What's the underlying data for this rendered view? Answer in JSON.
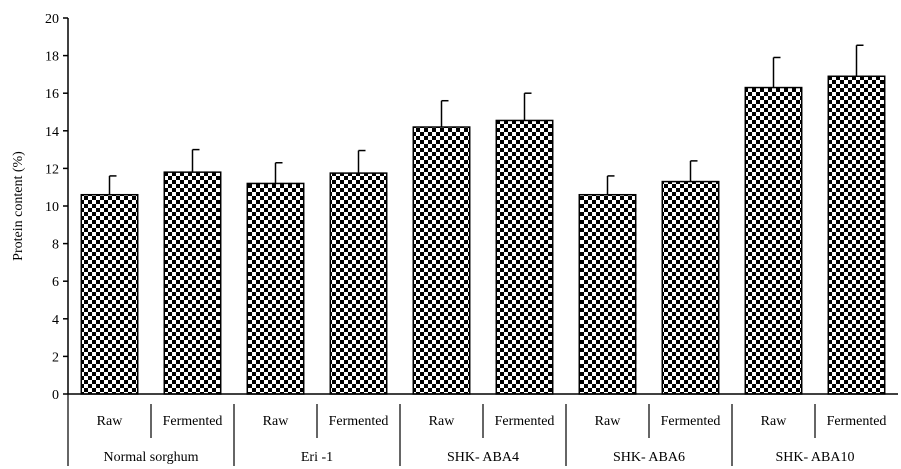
{
  "chart_data": {
    "type": "bar",
    "title": "",
    "xlabel": "",
    "ylabel": "Protein content (%)",
    "ylim": [
      0,
      20
    ],
    "yticks": [
      0,
      2,
      4,
      6,
      8,
      10,
      12,
      14,
      16,
      18,
      20
    ],
    "grid": false,
    "bar_pattern": "checkerboard",
    "bar_color": "#000000",
    "groups": [
      {
        "label": "Normal sorghum",
        "bars": [
          {
            "label": "Raw",
            "value": 10.6,
            "error": 1.0
          },
          {
            "label": "Fermented",
            "value": 11.8,
            "error": 1.2
          }
        ]
      },
      {
        "label": "Eri -1",
        "bars": [
          {
            "label": "Raw",
            "value": 11.2,
            "error": 1.1
          },
          {
            "label": "Fermented",
            "value": 11.75,
            "error": 1.2
          }
        ]
      },
      {
        "label": "SHK- ABA4",
        "bars": [
          {
            "label": "Raw",
            "value": 14.2,
            "error": 1.4
          },
          {
            "label": "Fermented",
            "value": 14.55,
            "error": 1.45
          }
        ]
      },
      {
        "label": "SHK- ABA6",
        "bars": [
          {
            "label": "Raw",
            "value": 10.6,
            "error": 1.0
          },
          {
            "label": "Fermented",
            "value": 11.3,
            "error": 1.1
          }
        ]
      },
      {
        "label": "SHK- ABA10",
        "bars": [
          {
            "label": "Raw",
            "value": 16.3,
            "error": 1.6
          },
          {
            "label": "Fermented",
            "value": 16.9,
            "error": 1.65
          }
        ]
      }
    ]
  }
}
